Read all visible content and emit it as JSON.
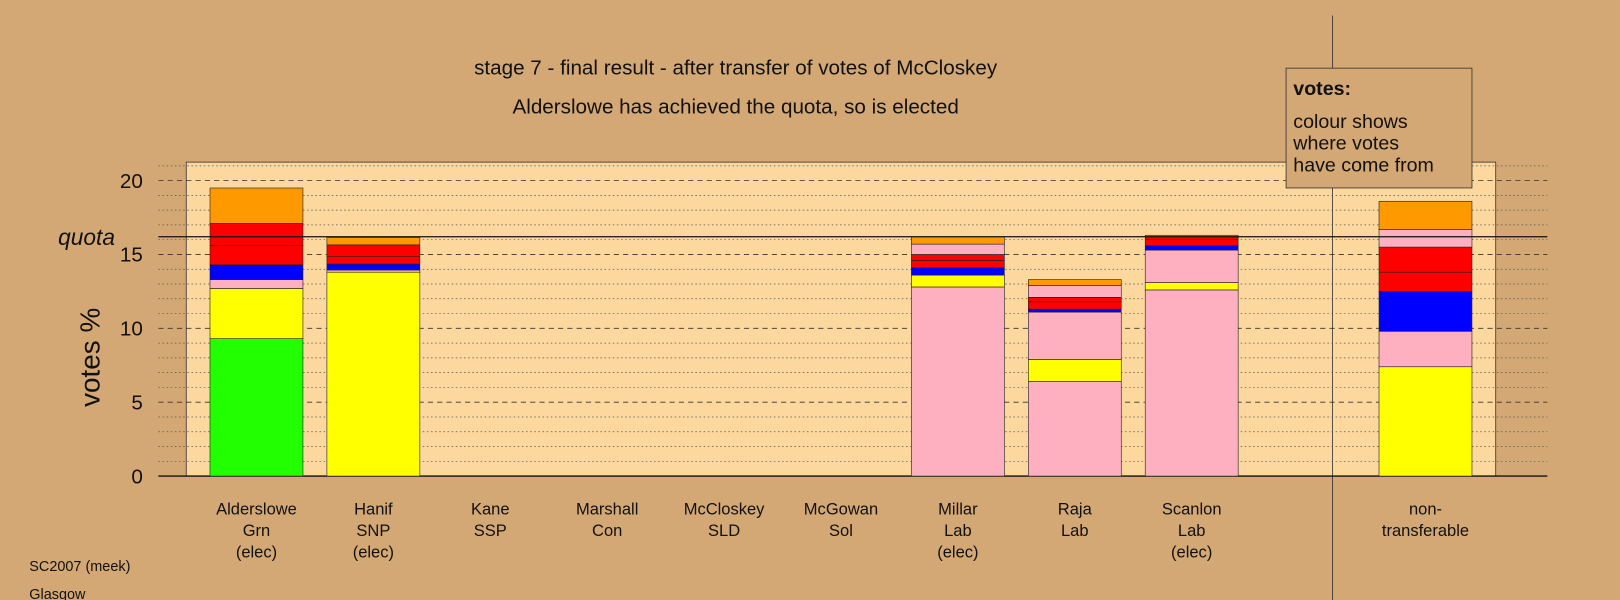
{
  "chart_data": {
    "type": "stacked_bar",
    "title": "stage 7 - final result - after transfer of votes of McCloskey",
    "subtitle": "Alderslowe has achieved the quota, so is elected",
    "y_label": "votes %",
    "categories": [
      "Alderslowe",
      "Hanif",
      "Kane",
      "Marshall",
      "McCloskey",
      "McGowan",
      "Millar",
      "Raja",
      "Scanlon",
      null,
      "non-"
    ],
    "parties": [
      "Grn",
      "SNP",
      "SSP",
      "Con",
      "SLD",
      "Sol",
      "Lab",
      "Lab",
      "Lab",
      null,
      "transferable"
    ],
    "status": [
      "(elec)",
      "(elec)",
      null,
      null,
      null,
      null,
      "(elec)",
      null,
      "(elec)",
      null,
      null
    ],
    "series": [
      {
        "color": "#22ff00",
        "values": [
          9.3,
          0,
          0,
          0,
          0,
          0,
          0,
          0,
          0,
          null,
          0
        ]
      },
      {
        "color": "#ffb0c0",
        "values": [
          0,
          0,
          0,
          0,
          0,
          0,
          12.8,
          6.4,
          12.6,
          null,
          0
        ]
      },
      {
        "color": "#ffff00",
        "values": [
          3.4,
          13.8,
          0,
          0,
          0,
          0,
          0.8,
          1.5,
          0.5,
          null,
          7.4
        ]
      },
      {
        "color": "#ffb0c0",
        "values": [
          0.6,
          0.15,
          0,
          0,
          0,
          0,
          0,
          3.2,
          2.2,
          null,
          2.4
        ]
      },
      {
        "color": "#0000ff",
        "values": [
          1.0,
          0.4,
          0,
          0,
          0,
          0,
          0.5,
          0.2,
          0.3,
          null,
          2.7
        ]
      },
      {
        "color": "#ff0000",
        "values": [
          1.3,
          0.5,
          0,
          0,
          0,
          0,
          0.5,
          0.5,
          0.4,
          null,
          1.3
        ]
      },
      {
        "color": "#ff0000",
        "values": [
          1.5,
          0.8,
          0,
          0,
          0,
          0,
          0.4,
          0.3,
          0.2,
          null,
          1.7
        ]
      },
      {
        "color": "#ffb0c0",
        "values": [
          0,
          0,
          0,
          0,
          0,
          0,
          0.7,
          0.8,
          0,
          null,
          1.2
        ]
      },
      {
        "color": "#ff9900",
        "values": [
          2.4,
          0.5,
          0,
          0,
          0,
          0,
          0.5,
          0.4,
          0.1,
          null,
          1.9
        ]
      }
    ],
    "ylim": [
      0,
      21.25
    ],
    "yticks": [
      0,
      5,
      10,
      15,
      20
    ],
    "minor_yticks": [
      1,
      2,
      3,
      4,
      6,
      7,
      8,
      9,
      11,
      12,
      13,
      14,
      16,
      17,
      18,
      19,
      21
    ],
    "quota": 16.2,
    "quota_label": "quota",
    "note": {
      "title": "votes:",
      "lines": [
        "colour shows",
        "where votes",
        "have come from"
      ]
    },
    "footer": [
      "SC2007 (meek)",
      "Glasgow"
    ]
  }
}
